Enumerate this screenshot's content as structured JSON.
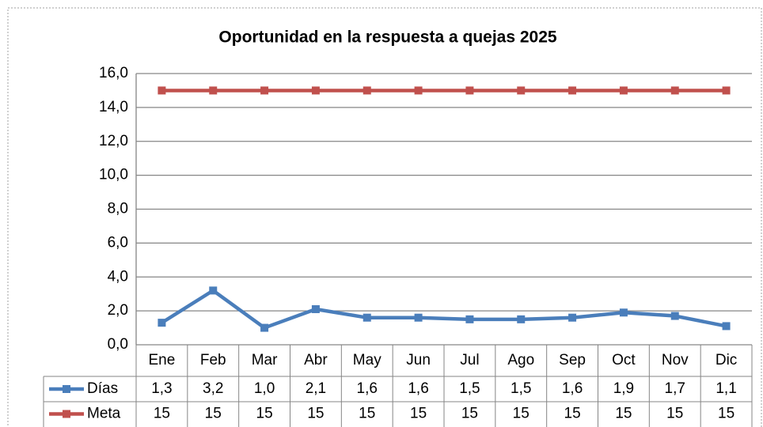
{
  "chart_data": {
    "type": "line",
    "title": "Oportunidad  en la respuesta a quejas  2025",
    "categories": [
      "Ene",
      "Feb",
      "Mar",
      "Abr",
      "May",
      "Jun",
      "Jul",
      "Ago",
      "Sep",
      "Oct",
      "Nov",
      "Dic"
    ],
    "series": [
      {
        "name": "Días",
        "color": "#4a7ebb",
        "values": [
          1.3,
          3.2,
          1.0,
          2.1,
          1.6,
          1.6,
          1.5,
          1.5,
          1.6,
          1.9,
          1.7,
          1.1
        ],
        "value_labels": [
          "1,3",
          "3,2",
          "1,0",
          "2,1",
          "1,6",
          "1,6",
          "1,5",
          "1,5",
          "1,6",
          "1,9",
          "1,7",
          "1,1"
        ]
      },
      {
        "name": "Meta",
        "color": "#c0504d",
        "values": [
          15,
          15,
          15,
          15,
          15,
          15,
          15,
          15,
          15,
          15,
          15,
          15
        ]
      }
    ],
    "ylim": [
      0,
      16
    ],
    "yticks": [
      {
        "value": 0,
        "label": "0,0"
      },
      {
        "value": 2,
        "label": "2,0"
      },
      {
        "value": 4,
        "label": "4,0"
      },
      {
        "value": 6,
        "label": "6,0"
      },
      {
        "value": 8,
        "label": "8,0"
      },
      {
        "value": 10,
        "label": "10,0"
      },
      {
        "value": 12,
        "label": "12,0"
      },
      {
        "value": 14,
        "label": "14,0"
      },
      {
        "value": 16,
        "label": "16,0"
      }
    ],
    "grid": true
  }
}
